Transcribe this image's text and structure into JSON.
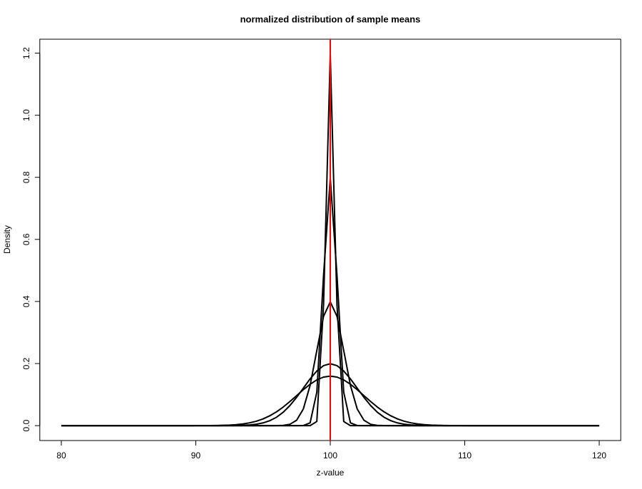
{
  "chart_data": {
    "type": "line",
    "title": "normalized distribution of sample means",
    "xlabel": "z-value",
    "ylabel": "Density",
    "x": [
      80,
      80.5,
      81,
      81.5,
      82,
      82.5,
      83,
      83.5,
      84,
      84.5,
      85,
      85.5,
      86,
      86.5,
      87,
      87.5,
      88,
      88.5,
      89,
      89.5,
      90,
      90.5,
      91,
      91.5,
      92,
      92.5,
      93,
      93.5,
      94,
      94.5,
      95,
      95.5,
      96,
      96.5,
      97,
      97.5,
      98,
      98.5,
      99,
      99.5,
      100,
      100.5,
      101,
      101.5,
      102,
      102.5,
      103,
      103.5,
      104,
      104.5,
      105,
      105.5,
      106,
      106.5,
      107,
      107.5,
      108,
      108.5,
      109,
      109.5,
      110,
      110.5,
      111,
      111.5,
      112,
      112.5,
      113,
      113.5,
      114,
      114.5,
      115,
      115.5,
      116,
      116.5,
      117,
      117.5,
      118,
      118.5,
      119,
      119.5,
      120
    ],
    "series": [
      {
        "color": "#000000",
        "values": [
          0,
          0,
          0,
          0,
          0,
          0,
          0,
          0,
          0,
          0,
          0,
          0,
          0,
          0,
          0,
          0,
          0,
          0,
          0,
          0,
          0.0001,
          0.0001,
          0.0002,
          0.0005,
          0.001,
          0.0018,
          0.0032,
          0.0054,
          0.009,
          0.0142,
          0.0216,
          0.0316,
          0.0444,
          0.0599,
          0.0777,
          0.0968,
          0.1159,
          0.1333,
          0.1473,
          0.1564,
          0.1596,
          0.1564,
          0.1473,
          0.1333,
          0.1159,
          0.0968,
          0.0777,
          0.0599,
          0.0444,
          0.0316,
          0.0216,
          0.0142,
          0.009,
          0.0054,
          0.0032,
          0.0018,
          0.001,
          0.0005,
          0.0002,
          0.0001,
          0.0001,
          0,
          0,
          0,
          0,
          0,
          0,
          0,
          0,
          0,
          0,
          0,
          0,
          0,
          0,
          0,
          0,
          0,
          0,
          0,
          0
        ]
      },
      {
        "color": "#000000",
        "values": [
          0,
          0,
          0,
          0,
          0,
          0,
          0,
          0,
          0,
          0,
          0,
          0,
          0,
          0,
          0,
          0,
          0,
          0,
          0,
          0,
          0,
          0,
          0,
          0,
          0.0001,
          0.0002,
          0.0004,
          0.001,
          0.0022,
          0.0045,
          0.0088,
          0.0159,
          0.027,
          0.0431,
          0.0648,
          0.0913,
          0.121,
          0.1506,
          0.176,
          0.1933,
          0.1995,
          0.1933,
          0.176,
          0.1506,
          0.121,
          0.0913,
          0.0648,
          0.0431,
          0.027,
          0.0159,
          0.0088,
          0.0045,
          0.0022,
          0.001,
          0.0004,
          0.0002,
          0.0001,
          0,
          0,
          0,
          0,
          0,
          0,
          0,
          0,
          0,
          0,
          0,
          0,
          0,
          0,
          0,
          0,
          0,
          0,
          0,
          0,
          0,
          0,
          0,
          0
        ]
      },
      {
        "color": "#000000",
        "values": [
          0,
          0,
          0,
          0,
          0,
          0,
          0,
          0,
          0,
          0,
          0,
          0,
          0,
          0,
          0,
          0,
          0,
          0,
          0,
          0,
          0,
          0,
          0,
          0,
          0,
          0,
          0,
          0,
          0,
          0,
          0,
          0,
          0.0001,
          0.0009,
          0.0044,
          0.0175,
          0.054,
          0.1295,
          0.242,
          0.3521,
          0.3989,
          0.3521,
          0.242,
          0.1295,
          0.054,
          0.0175,
          0.0044,
          0.0009,
          0.0001,
          0,
          0,
          0,
          0,
          0,
          0,
          0,
          0,
          0,
          0,
          0,
          0,
          0,
          0,
          0,
          0,
          0,
          0,
          0,
          0,
          0,
          0,
          0,
          0,
          0,
          0,
          0,
          0,
          0,
          0,
          0,
          0
        ]
      },
      {
        "color": "#000000",
        "values": [
          0,
          0,
          0,
          0,
          0,
          0,
          0,
          0,
          0,
          0,
          0,
          0,
          0,
          0,
          0,
          0,
          0,
          0,
          0,
          0,
          0,
          0,
          0,
          0,
          0,
          0,
          0,
          0,
          0,
          0,
          0,
          0,
          0,
          0,
          0,
          0,
          0.0003,
          0.0089,
          0.108,
          0.4839,
          0.7979,
          0.4839,
          0.108,
          0.0089,
          0.0003,
          0,
          0,
          0,
          0,
          0,
          0,
          0,
          0,
          0,
          0,
          0,
          0,
          0,
          0,
          0,
          0,
          0,
          0,
          0,
          0,
          0,
          0,
          0,
          0,
          0,
          0,
          0,
          0,
          0,
          0,
          0,
          0,
          0,
          0,
          0,
          0
        ]
      },
      {
        "color": "#000000",
        "values": [
          0,
          0,
          0,
          0,
          0,
          0,
          0,
          0,
          0,
          0,
          0,
          0,
          0,
          0,
          0,
          0,
          0,
          0,
          0,
          0,
          0,
          0,
          0,
          0,
          0,
          0,
          0,
          0,
          0,
          0,
          0,
          0,
          0,
          0,
          0,
          0,
          0,
          0,
          0.0133,
          0.3886,
          1.1968,
          0.3886,
          0.0133,
          0,
          0,
          0,
          0,
          0,
          0,
          0,
          0,
          0,
          0,
          0,
          0,
          0,
          0,
          0,
          0,
          0,
          0,
          0,
          0,
          0,
          0,
          0,
          0,
          0,
          0,
          0,
          0,
          0,
          0,
          0,
          0,
          0,
          0,
          0,
          0,
          0,
          0
        ]
      }
    ],
    "vline": {
      "x": 100,
      "color": "#ff0000"
    },
    "xlim": [
      78.4,
      121.6
    ],
    "xticks": [
      80,
      90,
      100,
      110,
      120
    ],
    "ylim": [
      -0.048,
      1.245
    ],
    "yticks": [
      {
        "value": 0,
        "label": "0.0"
      },
      0.2,
      0.4,
      0.6,
      0.8,
      {
        "value": 1,
        "label": "1.0"
      },
      1.2
    ],
    "grid": false
  }
}
